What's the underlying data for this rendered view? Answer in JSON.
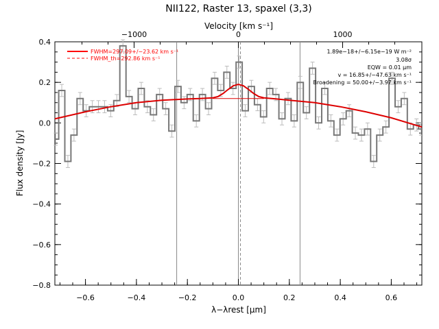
{
  "chart_data": {
    "type": "line",
    "title": "NII122, Raster 13, spaxel (3,3)",
    "xlabel": "λ−λrest [μm]",
    "ylabel": "Flux density [Jy]",
    "top_axis_label": "Velocity [km s⁻¹]",
    "xlim": [
      -0.72,
      0.72
    ],
    "ylim": [
      -0.8,
      0.4
    ],
    "x_ticks": [
      -0.6,
      -0.4,
      -0.2,
      0.0,
      0.2,
      0.4,
      0.6
    ],
    "x_tick_labels": [
      "−0.6",
      "−0.4",
      "−0.2",
      "0.0",
      "0.2",
      "0.4",
      "0.6"
    ],
    "y_ticks": [
      -0.8,
      -0.6,
      -0.4,
      -0.2,
      0.0,
      0.2,
      0.4
    ],
    "y_tick_labels": [
      "−0.8",
      "−0.6",
      "−0.4",
      "−0.2",
      "0.0",
      "0.2",
      "0.4"
    ],
    "top_ticks_velocity": [
      -1000,
      0,
      1000
    ],
    "top_tick_labels": [
      "−1000",
      "0",
      "1000"
    ],
    "velocity_per_micron": 2444,
    "legend": [
      {
        "label": "FWHM=297.09+/−23.62 km s⁻¹",
        "color": "#ff0000",
        "style": "solid"
      },
      {
        "label": "FWHM_th=292.86 km s⁻¹",
        "color": "#ff0000",
        "style": "dashed"
      }
    ],
    "legend_position": "top-left",
    "annotations": [
      "1.89e−18+/−6.15e−19 W m⁻²",
      "3.08σ",
      "EQW = 0.01 μm",
      "v = 16.85+/−47.63 km s⁻¹",
      "Broadening = 50.00+/−3.97 km s⁻¹"
    ],
    "annotation_position": "top-right",
    "vertical_lines": [
      {
        "x": -0.242,
        "style": "solid",
        "color": "#888888"
      },
      {
        "x": 0.242,
        "style": "solid",
        "color": "#888888"
      },
      {
        "x": 0.0,
        "style": "solid",
        "color": "#888888"
      },
      {
        "x": 0.008,
        "style": "dashed",
        "color": "#888888"
      }
    ],
    "series": [
      {
        "style": "step",
        "color": "#777777",
        "x": [
          -0.717,
          -0.693,
          -0.669,
          -0.645,
          -0.621,
          -0.597,
          -0.573,
          -0.549,
          -0.525,
          -0.501,
          -0.477,
          -0.453,
          -0.429,
          -0.405,
          -0.381,
          -0.357,
          -0.333,
          -0.309,
          -0.285,
          -0.261,
          -0.237,
          -0.213,
          -0.189,
          -0.165,
          -0.141,
          -0.117,
          -0.093,
          -0.069,
          -0.045,
          -0.021,
          0.003,
          0.027,
          0.051,
          0.075,
          0.099,
          0.123,
          0.147,
          0.171,
          0.195,
          0.219,
          0.243,
          0.267,
          0.291,
          0.315,
          0.339,
          0.363,
          0.387,
          0.411,
          0.435,
          0.459,
          0.483,
          0.507,
          0.531,
          0.555,
          0.579,
          0.603,
          0.627,
          0.651,
          0.675,
          0.699,
          0.717
        ],
        "values": [
          -0.08,
          0.16,
          -0.19,
          -0.06,
          0.12,
          0.06,
          0.08,
          0.08,
          0.08,
          0.06,
          0.11,
          0.38,
          0.13,
          0.07,
          0.17,
          0.08,
          0.04,
          0.14,
          0.07,
          -0.04,
          0.18,
          0.1,
          0.14,
          0.01,
          0.14,
          0.07,
          0.22,
          0.16,
          0.25,
          0.17,
          0.3,
          0.06,
          0.18,
          0.09,
          0.03,
          0.17,
          0.14,
          0.02,
          0.12,
          0.01,
          0.2,
          0.05,
          0.27,
          0.0,
          0.17,
          0.01,
          -0.06,
          0.02,
          0.06,
          -0.05,
          -0.06,
          -0.03,
          -0.19,
          -0.06,
          -0.02,
          0.22,
          0.08,
          0.12,
          -0.03,
          -0.01,
          -0.03
        ],
        "errors": [
          0.03,
          0.03,
          0.03,
          0.03,
          0.03,
          0.03,
          0.03,
          0.03,
          0.03,
          0.03,
          0.03,
          0.03,
          0.03,
          0.03,
          0.03,
          0.03,
          0.03,
          0.03,
          0.03,
          0.03,
          0.03,
          0.03,
          0.03,
          0.03,
          0.03,
          0.03,
          0.03,
          0.03,
          0.03,
          0.03,
          0.03,
          0.03,
          0.03,
          0.03,
          0.03,
          0.03,
          0.03,
          0.03,
          0.03,
          0.03,
          0.03,
          0.03,
          0.03,
          0.03,
          0.03,
          0.03,
          0.03,
          0.03,
          0.03,
          0.03,
          0.03,
          0.03,
          0.03,
          0.03,
          0.03,
          0.03,
          0.03,
          0.03,
          0.03,
          0.03,
          0.03
        ]
      },
      {
        "style": "line",
        "color": "#dd0000",
        "x": [
          -0.72,
          -0.6,
          -0.5,
          -0.4,
          -0.3,
          -0.2,
          -0.15,
          -0.1,
          -0.08,
          -0.06,
          -0.04,
          -0.02,
          0.0,
          0.02,
          0.04,
          0.06,
          0.08,
          0.1,
          0.15,
          0.2,
          0.3,
          0.4,
          0.5,
          0.6,
          0.72
        ],
        "values": [
          0.02,
          0.055,
          0.08,
          0.1,
          0.112,
          0.118,
          0.12,
          0.124,
          0.13,
          0.145,
          0.165,
          0.183,
          0.19,
          0.183,
          0.165,
          0.145,
          0.13,
          0.124,
          0.118,
          0.112,
          0.1,
          0.08,
          0.055,
          0.025,
          -0.02
        ]
      },
      {
        "style": "line",
        "color": "#dd0000",
        "x": [
          -0.1,
          0.1
        ],
        "values": [
          0.12,
          0.12
        ]
      }
    ]
  }
}
